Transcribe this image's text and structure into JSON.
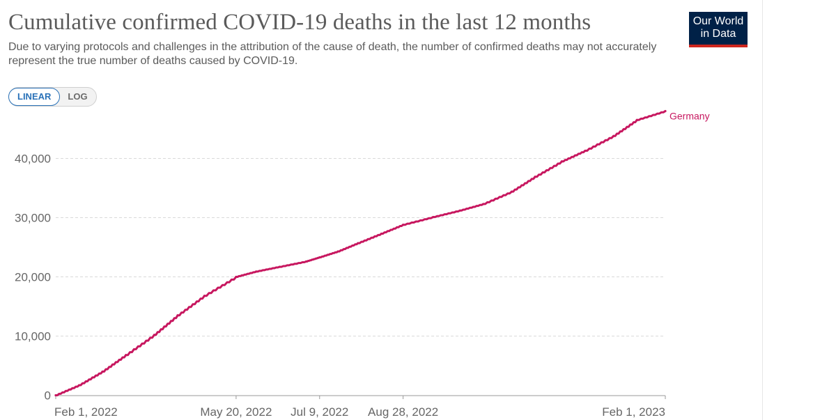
{
  "header": {
    "title": "Cumulative confirmed COVID-19 deaths in the last 12 months",
    "subtitle": "Due to varying protocols and challenges in the attribution of the cause of death, the number of confirmed deaths may not accurately represent the true number of deaths caused by COVID-19."
  },
  "logo": {
    "line1": "Our World",
    "line2": "in Data"
  },
  "scale_toggle": {
    "linear": "LINEAR",
    "log": "LOG",
    "selected": "LINEAR"
  },
  "colors": {
    "series": "#c7175f",
    "logo_bg": "#002147",
    "logo_bar": "#ce261e",
    "toggle_active": "#2a72b8"
  },
  "chart_data": {
    "type": "line",
    "title": "Cumulative confirmed COVID-19 deaths in the last 12 months",
    "xlabel": "",
    "ylabel": "",
    "ylim": [
      0,
      48000
    ],
    "xlim": [
      "2022-02-01",
      "2023-02-01"
    ],
    "grid": "horizontal dashed",
    "legend": "inline label at line end",
    "y_ticks": [
      {
        "value": 0,
        "label": "0"
      },
      {
        "value": 10000,
        "label": "10,000"
      },
      {
        "value": 20000,
        "label": "20,000"
      },
      {
        "value": 30000,
        "label": "30,000"
      },
      {
        "value": 40000,
        "label": "40,000"
      }
    ],
    "x_ticks": [
      {
        "date": "2022-02-01",
        "label": "Feb 1, 2022"
      },
      {
        "date": "2022-05-20",
        "label": "May 20, 2022"
      },
      {
        "date": "2022-07-09",
        "label": "Jul 9, 2022"
      },
      {
        "date": "2022-08-28",
        "label": "Aug 28, 2022"
      },
      {
        "date": "2023-02-01",
        "label": "Feb 1, 2023"
      }
    ],
    "series": [
      {
        "name": "Germany",
        "points": [
          [
            "2022-02-01",
            0
          ],
          [
            "2022-02-15",
            1700
          ],
          [
            "2022-03-01",
            4000
          ],
          [
            "2022-03-15",
            6800
          ],
          [
            "2022-04-01",
            10200
          ],
          [
            "2022-04-15",
            13500
          ],
          [
            "2022-05-01",
            16800
          ],
          [
            "2022-05-20",
            20000
          ],
          [
            "2022-06-01",
            20900
          ],
          [
            "2022-06-15",
            21700
          ],
          [
            "2022-07-01",
            22600
          ],
          [
            "2022-07-09",
            23300
          ],
          [
            "2022-07-20",
            24300
          ],
          [
            "2022-08-01",
            25700
          ],
          [
            "2022-08-15",
            27300
          ],
          [
            "2022-08-28",
            28800
          ],
          [
            "2022-09-15",
            30100
          ],
          [
            "2022-10-01",
            31200
          ],
          [
            "2022-10-15",
            32300
          ],
          [
            "2022-11-01",
            34400
          ],
          [
            "2022-11-15",
            36900
          ],
          [
            "2022-12-01",
            39500
          ],
          [
            "2022-12-15",
            41300
          ],
          [
            "2023-01-01",
            43800
          ],
          [
            "2023-01-15",
            46500
          ],
          [
            "2023-02-01",
            48000
          ]
        ]
      }
    ]
  }
}
